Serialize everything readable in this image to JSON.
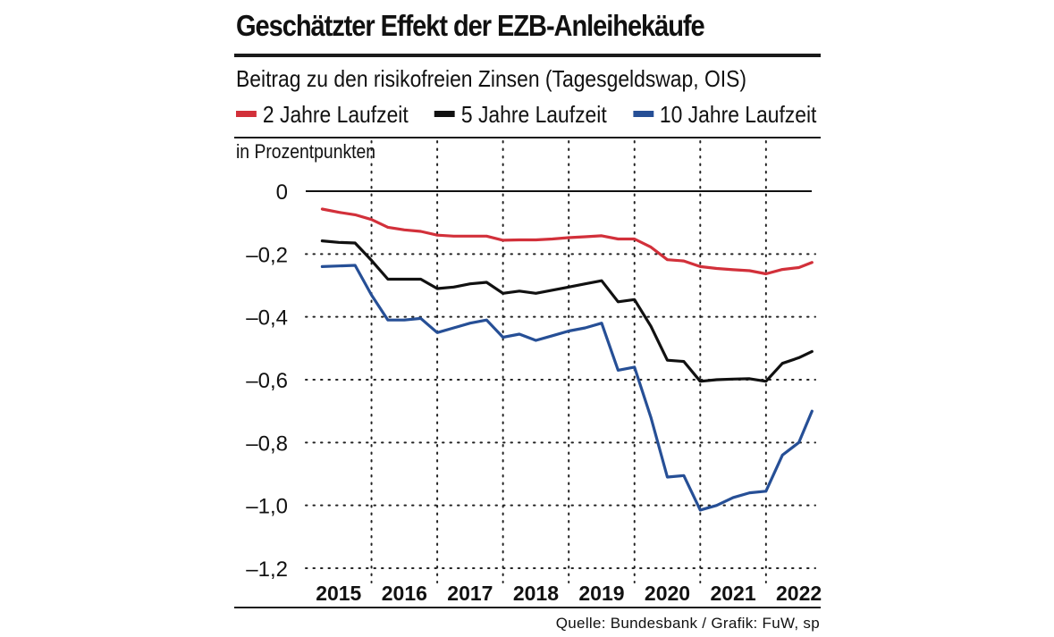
{
  "chart_data": {
    "type": "line",
    "title": "Geschätzter Effekt der EZB-Anleihekäufe",
    "subtitle": "Beitrag zu den risikofreien Zinsen (Tagesgeldswap, OIS)",
    "ylabel": "in Prozentpunkten",
    "source": "Quelle: Bundesbank / Grafik: FuW, sp",
    "ylim": [
      -1.2,
      0
    ],
    "y_ticks": [
      0,
      -0.2,
      -0.4,
      -0.6,
      -0.8,
      -1.0,
      -1.2
    ],
    "y_tick_labels": [
      "0",
      "–0,2",
      "–0,4",
      "–0,6",
      "–0,8",
      "–1,0",
      "–1,2"
    ],
    "xlim": [
      2014.75,
      2022.5
    ],
    "x_tick_labels": [
      "2015",
      "2016",
      "2017",
      "2018",
      "2019",
      "2020",
      "2021",
      "2022"
    ],
    "x_tick_positions": [
      2015.25,
      2016.25,
      2017.25,
      2018.25,
      2019.25,
      2020.25,
      2021.25,
      2022.25
    ],
    "year_dividers": [
      2015.75,
      2016.75,
      2017.75,
      2018.75,
      2019.75,
      2020.75,
      2021.75
    ],
    "grid": "dotted",
    "series": [
      {
        "name": "2 Jahre Laufzeit",
        "color": "#d2303a",
        "x": [
          2015.0,
          2015.25,
          2015.5,
          2015.75,
          2016.0,
          2016.25,
          2016.5,
          2016.75,
          2017.0,
          2017.25,
          2017.5,
          2017.75,
          2018.0,
          2018.25,
          2018.5,
          2018.75,
          2019.0,
          2019.25,
          2019.5,
          2019.75,
          2020.0,
          2020.25,
          2020.5,
          2020.75,
          2021.0,
          2021.25,
          2021.5,
          2021.75,
          2022.0,
          2022.25,
          2022.45
        ],
        "values": [
          -0.057,
          -0.067,
          -0.075,
          -0.09,
          -0.115,
          -0.123,
          -0.128,
          -0.14,
          -0.143,
          -0.143,
          -0.143,
          -0.156,
          -0.155,
          -0.155,
          -0.152,
          -0.148,
          -0.145,
          -0.142,
          -0.152,
          -0.152,
          -0.178,
          -0.218,
          -0.222,
          -0.24,
          -0.246,
          -0.25,
          -0.253,
          -0.263,
          -0.249,
          -0.243,
          -0.227
        ]
      },
      {
        "name": "5 Jahre Laufzeit",
        "color": "#111111",
        "x": [
          2015.0,
          2015.25,
          2015.5,
          2015.75,
          2016.0,
          2016.25,
          2016.5,
          2016.75,
          2017.0,
          2017.25,
          2017.5,
          2017.75,
          2018.0,
          2018.25,
          2018.5,
          2018.75,
          2019.0,
          2019.25,
          2019.5,
          2019.75,
          2020.0,
          2020.25,
          2020.5,
          2020.75,
          2021.0,
          2021.25,
          2021.5,
          2021.75,
          2022.0,
          2022.25,
          2022.45
        ],
        "values": [
          -0.158,
          -0.163,
          -0.165,
          -0.22,
          -0.28,
          -0.28,
          -0.28,
          -0.31,
          -0.305,
          -0.295,
          -0.29,
          -0.325,
          -0.318,
          -0.325,
          -0.315,
          -0.305,
          -0.295,
          -0.285,
          -0.352,
          -0.345,
          -0.43,
          -0.538,
          -0.542,
          -0.605,
          -0.6,
          -0.598,
          -0.597,
          -0.605,
          -0.548,
          -0.53,
          -0.51
        ]
      },
      {
        "name": "10 Jahre Laufzeit",
        "color": "#264f96",
        "x": [
          2015.0,
          2015.25,
          2015.5,
          2015.75,
          2016.0,
          2016.25,
          2016.5,
          2016.75,
          2017.0,
          2017.25,
          2017.5,
          2017.75,
          2018.0,
          2018.25,
          2018.5,
          2018.75,
          2019.0,
          2019.25,
          2019.5,
          2019.75,
          2020.0,
          2020.25,
          2020.5,
          2020.75,
          2021.0,
          2021.25,
          2021.5,
          2021.75,
          2022.0,
          2022.25,
          2022.45
        ],
        "values": [
          -0.24,
          -0.238,
          -0.236,
          -0.33,
          -0.41,
          -0.41,
          -0.405,
          -0.45,
          -0.435,
          -0.42,
          -0.41,
          -0.465,
          -0.455,
          -0.475,
          -0.46,
          -0.445,
          -0.435,
          -0.42,
          -0.57,
          -0.56,
          -0.72,
          -0.91,
          -0.905,
          -1.015,
          -1.0,
          -0.975,
          -0.96,
          -0.955,
          -0.84,
          -0.8,
          -0.7
        ]
      }
    ]
  }
}
